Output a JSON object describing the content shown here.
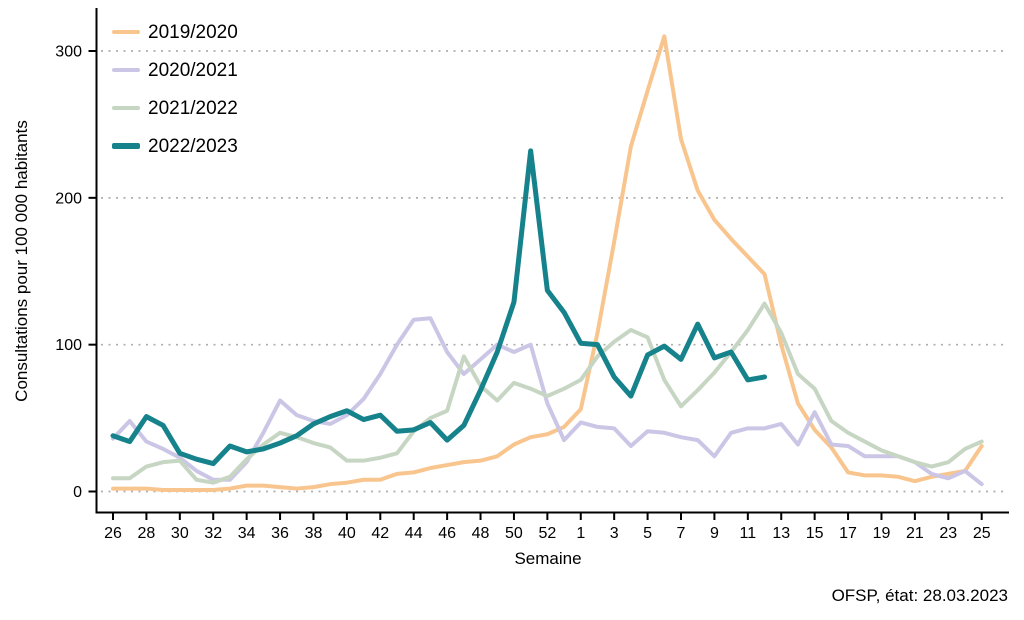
{
  "chart_data": {
    "type": "line",
    "xlabel": "Semaine",
    "ylabel": "Consultations pour 100 000 habitants",
    "caption": "OFSP, état: 28.03.2023",
    "ylim": [
      0,
      320
    ],
    "yticks": [
      0,
      100,
      200,
      300
    ],
    "grid": "dotted horizontal lines at y ticks",
    "grid_color": "#ADADAD",
    "axis_color": "#000000",
    "legend_position": "top-left inside plot",
    "weeks": [
      "26",
      "27",
      "28",
      "29",
      "30",
      "31",
      "32",
      "33",
      "34",
      "35",
      "36",
      "37",
      "38",
      "39",
      "40",
      "41",
      "42",
      "43",
      "44",
      "45",
      "46",
      "47",
      "48",
      "49",
      "50",
      "51",
      "52",
      "53",
      "1",
      "2",
      "3",
      "4",
      "5",
      "6",
      "7",
      "8",
      "9",
      "10",
      "11",
      "12",
      "13",
      "14",
      "15",
      "16",
      "17",
      "18",
      "19",
      "20",
      "21",
      "22",
      "23",
      "24",
      "25"
    ],
    "x_tick_slots": [
      0,
      2,
      4,
      6,
      8,
      10,
      12,
      14,
      16,
      18,
      20,
      22,
      24,
      26,
      28,
      30,
      32,
      34,
      36,
      38,
      40,
      42,
      44,
      46,
      48,
      50,
      52
    ],
    "x_tick_labels": [
      "26",
      "28",
      "30",
      "32",
      "34",
      "36",
      "38",
      "40",
      "42",
      "44",
      "46",
      "48",
      "50",
      "52",
      "1",
      "3",
      "5",
      "7",
      "9",
      "11",
      "13",
      "15",
      "17",
      "19",
      "21",
      "23",
      "25"
    ],
    "series": [
      {
        "name": "2019/2020",
        "color": "#F9C58E",
        "width": 4,
        "values": [
          2,
          2,
          2,
          1,
          1,
          1,
          1,
          2,
          4,
          4,
          3,
          2,
          3,
          5,
          6,
          8,
          8,
          12,
          13,
          16,
          18,
          20,
          21,
          24,
          32,
          37,
          39,
          44,
          56,
          108,
          170,
          235,
          273,
          310,
          240,
          205,
          185,
          172,
          160,
          148,
          100,
          60,
          42,
          30,
          13,
          11,
          11,
          10,
          7,
          10,
          12,
          14,
          31
        ]
      },
      {
        "name": "2020/2021",
        "color": "#CBC6E6",
        "width": 4,
        "values": [
          36,
          48,
          34,
          29,
          23,
          14,
          8,
          8,
          20,
          40,
          62,
          52,
          48,
          46,
          52,
          63,
          80,
          100,
          117,
          118,
          95,
          80,
          90,
          100,
          95,
          100,
          60,
          35,
          47,
          44,
          43,
          31,
          41,
          40,
          37,
          35,
          24,
          40,
          43,
          43,
          46,
          32,
          54,
          32,
          31,
          24,
          24,
          24,
          20,
          12,
          9,
          14,
          5
        ]
      },
      {
        "name": "2021/2022",
        "color": "#C6D6C3",
        "width": 4,
        "values": [
          9,
          9,
          17,
          20,
          21,
          8,
          6,
          10,
          22,
          32,
          40,
          37,
          33,
          30,
          21,
          21,
          23,
          26,
          41,
          50,
          55,
          92,
          72,
          62,
          74,
          70,
          65,
          70,
          76,
          92,
          102,
          110,
          105,
          76,
          58,
          69,
          81,
          95,
          110,
          128,
          108,
          80,
          70,
          48,
          40,
          34,
          28,
          24,
          20,
          17,
          20,
          29,
          34
        ]
      },
      {
        "name": "2022/2023",
        "color": "#16828B",
        "width": 5,
        "values": [
          38,
          34,
          51,
          45,
          26,
          22,
          19,
          31,
          27,
          29,
          33,
          38,
          46,
          51,
          55,
          49,
          52,
          41,
          42,
          47,
          35,
          45,
          69,
          95,
          129,
          232,
          137,
          122,
          101,
          100,
          78,
          65,
          93,
          99,
          90,
          114,
          91,
          95,
          76,
          78,
          null,
          null,
          null,
          null,
          null,
          null,
          null,
          null,
          null,
          null,
          null,
          null,
          null
        ]
      }
    ]
  }
}
